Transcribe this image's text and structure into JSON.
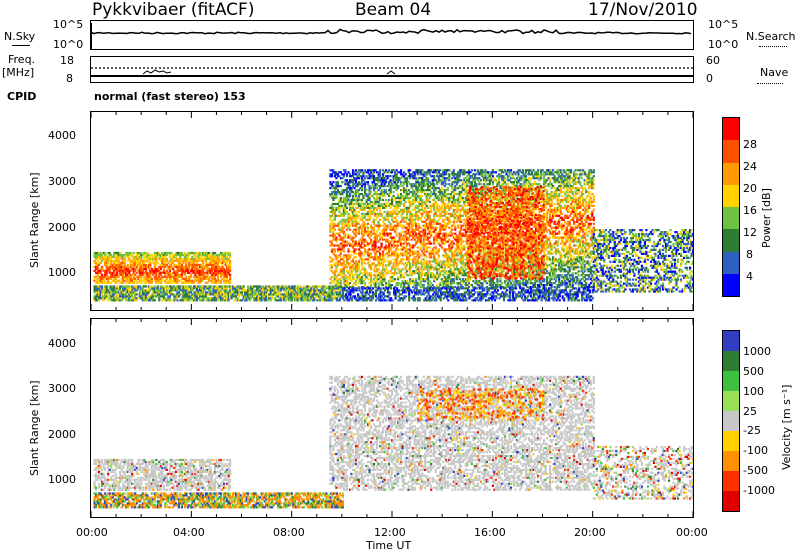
{
  "header": {
    "station": "Pykkvibaer (fitACF)",
    "beam": "Beam 04",
    "date": "17/Nov/2010"
  },
  "params": {
    "nsky_label": "N.Sky",
    "nsky_ticks": [
      "10^5",
      "10^0"
    ],
    "nsearch_label": "N.Search",
    "nsearch_ticks": [
      "10^5",
      "10^0"
    ],
    "freq_label_line1": "Freq.",
    "freq_label_line2": "[MHz]",
    "freq_ticks": [
      "18",
      "8"
    ],
    "nave_label": "Nave",
    "nave_ticks": [
      "60",
      "0"
    ],
    "cpid_label": "CPID",
    "cpid_text": "normal (fast stereo) 153"
  },
  "chart_data": [
    {
      "type": "heatmap",
      "name": "power-panel",
      "ylabel": "Slant Range [km]",
      "y_ticks": [
        "4000",
        "3000",
        "2000",
        "1000"
      ],
      "x_ticks": [
        "00:00",
        "04:00",
        "08:00",
        "12:00",
        "16:00",
        "20:00",
        "00:00"
      ],
      "colorbar": {
        "label": "Power [dB]",
        "ticks": [
          "28",
          "24",
          "20",
          "16",
          "12",
          "8",
          "4"
        ],
        "colors": [
          "#ff0000",
          "#ff5000",
          "#ff9a00",
          "#ffd200",
          "#6fc23f",
          "#2e7d32",
          "#2f5fbf",
          "#0000ff"
        ]
      }
    },
    {
      "type": "heatmap",
      "name": "velocity-panel",
      "ylabel": "Slant Range [km]",
      "y_ticks": [
        "4000",
        "3000",
        "2000",
        "1000"
      ],
      "x_ticks": [
        "00:00",
        "04:00",
        "08:00",
        "12:00",
        "16:00",
        "20:00",
        "00:00"
      ],
      "xlabel": "Time UT",
      "colorbar": {
        "label": "Velocity [m s⁻¹]",
        "ticks": [
          "1000",
          "500",
          "100",
          "25",
          "-25",
          "-100",
          "-500",
          "-1000"
        ],
        "colors": [
          "#2f3fbf",
          "#2e7d32",
          "#3fbf3f",
          "#9be05a",
          "#c8c8c8",
          "#ffd000",
          "#ff9000",
          "#ff3000",
          "#e00000"
        ]
      }
    }
  ]
}
